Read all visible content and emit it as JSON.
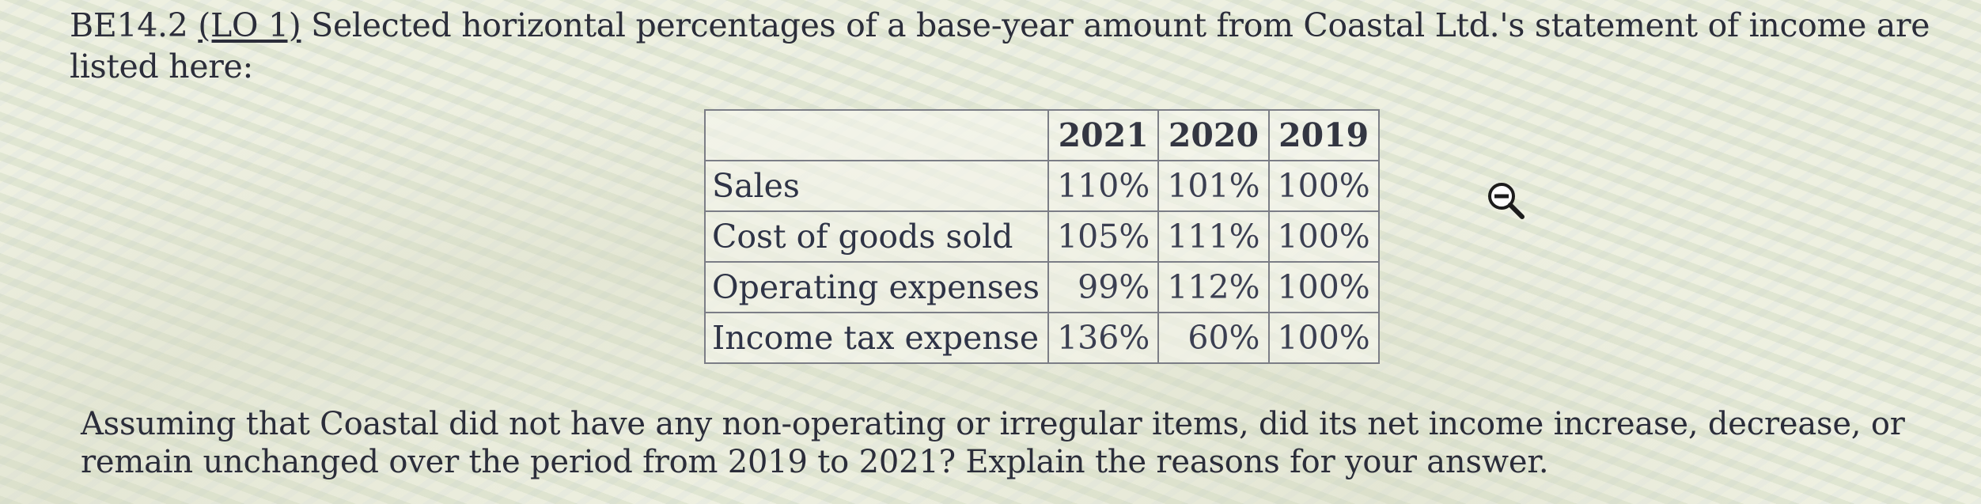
{
  "header": {
    "problem_code": "BE14.2",
    "lo_link": "(LO 1)",
    "text": " Selected horizontal percentages of a base-year amount from Coastal Ltd.'s statement of income are listed here:"
  },
  "table": {
    "columns": [
      "2021",
      "2020",
      "2019"
    ],
    "rows": [
      {
        "label": "Sales",
        "values": [
          "110%",
          "101%",
          "100%"
        ]
      },
      {
        "label": "Cost of goods sold",
        "values": [
          "105%",
          "111%",
          "100%"
        ]
      },
      {
        "label": "Operating expenses",
        "values": [
          "99%",
          "112%",
          "100%"
        ]
      },
      {
        "label": "Income tax expense",
        "values": [
          "136%",
          "60%",
          "100%"
        ]
      }
    ]
  },
  "question": {
    "text": "Assuming that Coastal did not have any non-operating or irregular items, did its net income increase, decrease, or remain unchanged over the period from 2019 to 2021? Explain the reasons for your answer."
  },
  "cursor": {
    "icon": "zoom-out-icon"
  }
}
